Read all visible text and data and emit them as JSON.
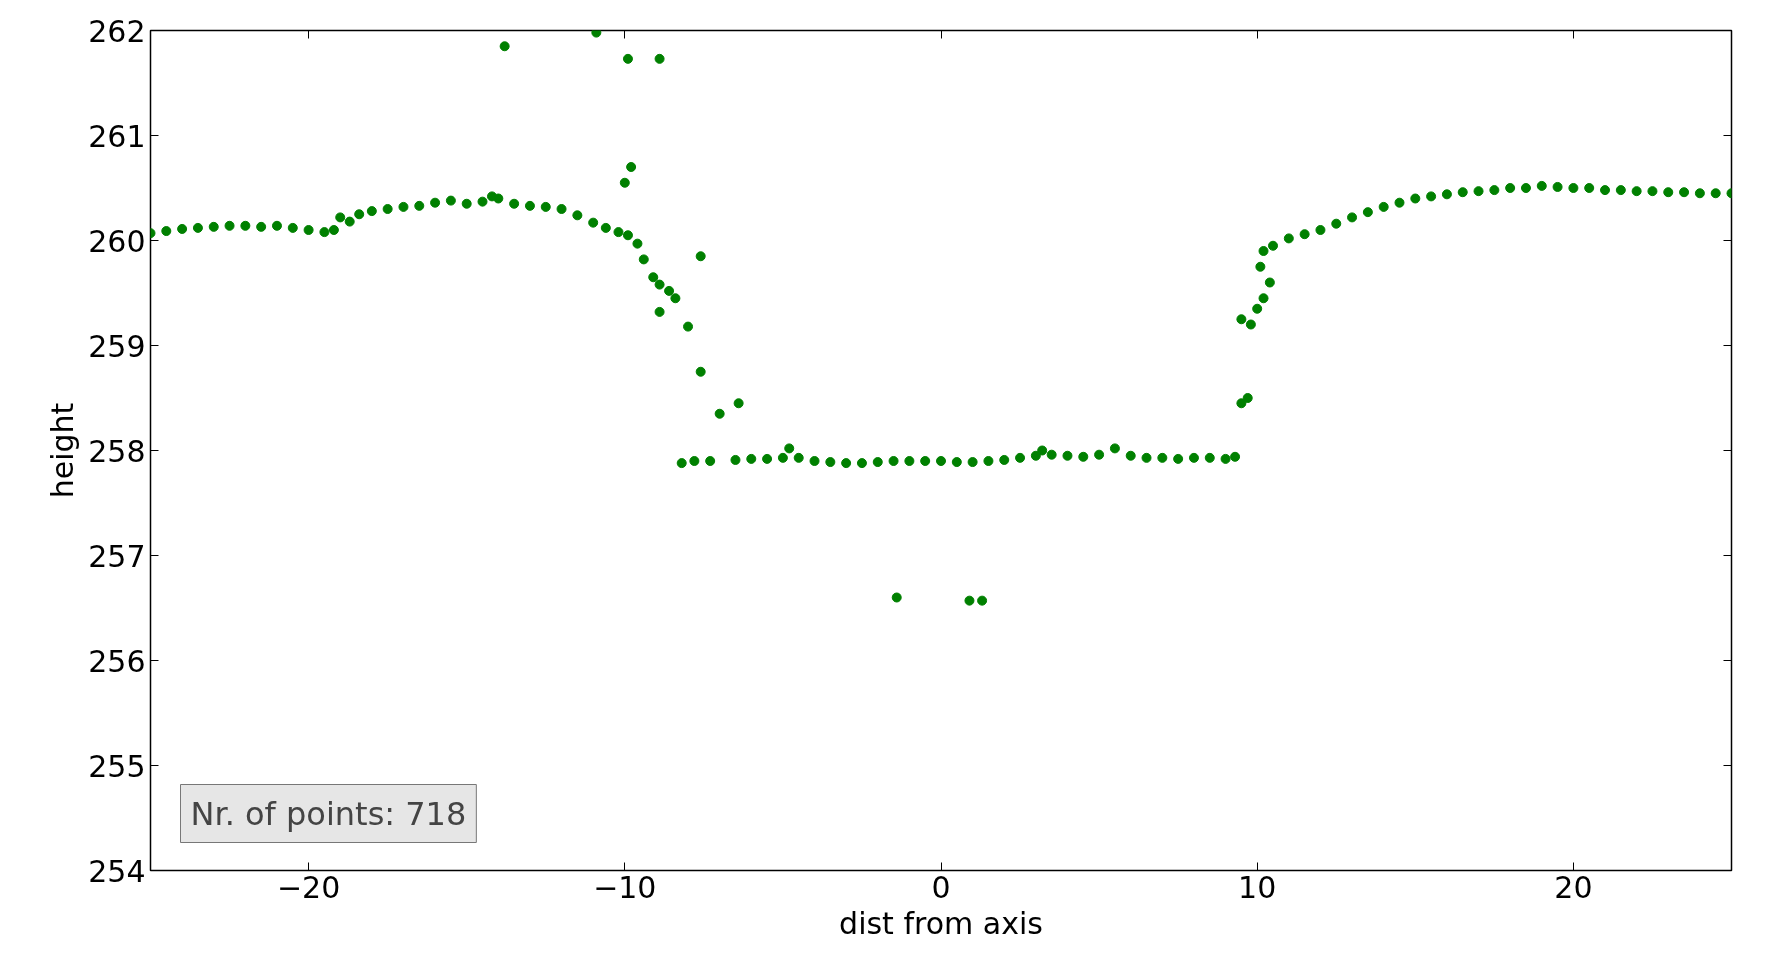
{
  "chart_data": {
    "type": "scatter",
    "xlabel": "dist from axis",
    "ylabel": "height",
    "xlim": [
      -25,
      25
    ],
    "ylim": [
      254,
      262
    ],
    "xticks": [
      {
        "value": -20,
        "label": "−20"
      },
      {
        "value": -10,
        "label": "−10"
      },
      0,
      10,
      20
    ],
    "yticks": [
      254,
      255,
      256,
      257,
      258,
      259,
      260,
      261,
      262
    ],
    "grid": false,
    "marker": "circle",
    "annotations": [
      "Nr. of points: 718"
    ],
    "series": [
      {
        "color": "#008000",
        "x": [
          -25,
          -24.5,
          -24,
          -23.5,
          -23,
          -22.5,
          -22,
          -21.5,
          -21,
          -20.5,
          -20,
          -19.5,
          -19.2,
          -19,
          -18.7,
          -18.4,
          -18,
          -17.5,
          -17,
          -16.5,
          -16,
          -15.5,
          -15,
          -14.5,
          -14.2,
          -14,
          -13.5,
          -13,
          -12.5,
          -12,
          -11.5,
          -11,
          -10.6,
          -10.2,
          -9.9,
          -13.8,
          -10.9,
          -9.9,
          -8.9,
          -10.0,
          -9.8,
          -9.6,
          -9.4,
          -9.1,
          -8.9,
          -8.6,
          -8.4,
          -8.9,
          -8.0,
          -7.6,
          -7.6,
          -7.0,
          -6.4,
          -8.2,
          -7.8,
          -7.3,
          -6.5,
          -6,
          -5.5,
          -5,
          -4.8,
          -4.5,
          -4,
          -3.5,
          -3,
          -2.5,
          -2,
          -1.5,
          -1,
          -0.5,
          0,
          0.5,
          1,
          1.5,
          2,
          2.5,
          3,
          3.2,
          3.5,
          4,
          4.5,
          5,
          5.5,
          6,
          6.5,
          7,
          7.5,
          8,
          8.5,
          9,
          9.3,
          -1.4,
          0.9,
          1.3,
          9.5,
          9.7,
          9.5,
          9.8,
          10.0,
          10.2,
          10.4,
          10.1,
          10.2,
          10.5,
          11,
          11.5,
          12,
          12.5,
          13,
          13.5,
          14,
          14.5,
          15,
          15.5,
          16,
          16.5,
          17,
          17.5,
          18,
          18.5,
          19,
          19.5,
          20,
          20.5,
          21,
          21.5,
          22,
          22.5,
          23,
          23.5,
          24,
          24.5,
          25
        ],
        "values": [
          260.07,
          260.09,
          260.11,
          260.12,
          260.13,
          260.14,
          260.14,
          260.13,
          260.14,
          260.12,
          260.1,
          260.08,
          260.1,
          260.22,
          260.18,
          260.25,
          260.28,
          260.3,
          260.32,
          260.33,
          260.36,
          260.38,
          260.35,
          260.37,
          260.42,
          260.4,
          260.35,
          260.33,
          260.32,
          260.3,
          260.24,
          260.17,
          260.12,
          260.08,
          260.05,
          261.85,
          261.98,
          261.73,
          261.73,
          260.55,
          260.7,
          259.97,
          259.82,
          259.65,
          259.58,
          259.52,
          259.45,
          259.32,
          259.18,
          259.85,
          258.75,
          258.35,
          258.45,
          257.88,
          257.9,
          257.9,
          257.91,
          257.92,
          257.92,
          257.93,
          258.02,
          257.93,
          257.9,
          257.89,
          257.88,
          257.88,
          257.89,
          257.9,
          257.9,
          257.9,
          257.9,
          257.89,
          257.89,
          257.9,
          257.91,
          257.93,
          257.95,
          258.0,
          257.96,
          257.95,
          257.94,
          257.96,
          258.02,
          257.95,
          257.93,
          257.93,
          257.92,
          257.93,
          257.93,
          257.92,
          257.94,
          256.6,
          256.57,
          256.57,
          258.45,
          258.5,
          259.25,
          259.2,
          259.35,
          259.45,
          259.6,
          259.75,
          259.9,
          259.95,
          260.02,
          260.06,
          260.1,
          260.16,
          260.22,
          260.27,
          260.32,
          260.36,
          260.4,
          260.42,
          260.44,
          260.46,
          260.47,
          260.48,
          260.5,
          260.5,
          260.52,
          260.51,
          260.5,
          260.5,
          260.48,
          260.48,
          260.47,
          260.47,
          260.46,
          260.46,
          260.45,
          260.45,
          260.45
        ]
      }
    ]
  }
}
